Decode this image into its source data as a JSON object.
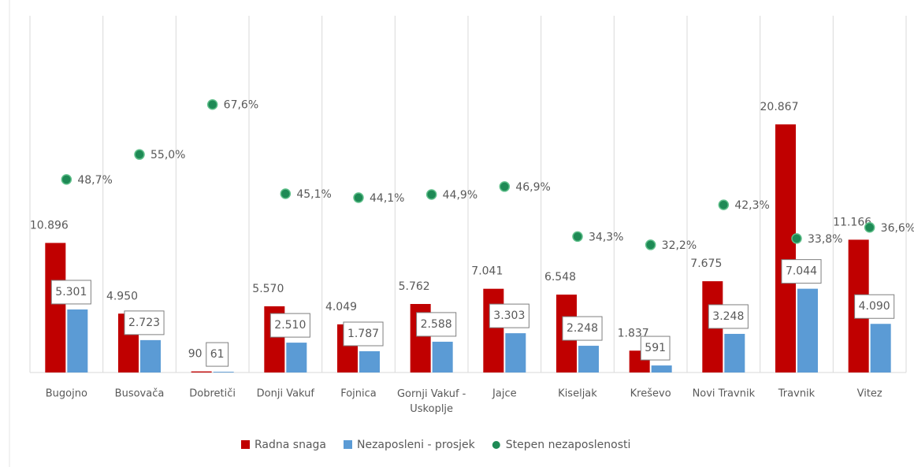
{
  "chart_data": {
    "type": "bar",
    "categories": [
      "Bugojno",
      "Busovača",
      "Dobretiči",
      "Donji Vakuf",
      "Fojnica",
      "Gornji Vakuf - Uskoplje",
      "Jajce",
      "Kiseljak",
      "Kreševo",
      "Novi Travnik",
      "Travnik",
      "Vitez"
    ],
    "series": [
      {
        "name": "Radna snaga",
        "type": "bar",
        "color": "#c00000",
        "values": [
          10896,
          4950,
          90,
          5570,
          4049,
          5762,
          7041,
          6548,
          1837,
          7675,
          20867,
          11166
        ],
        "value_labels": [
          "10.896",
          "4.950",
          "90",
          "5.570",
          "4.049",
          "5.762",
          "7.041",
          "6.548",
          "1.837",
          "7.675",
          "20.867",
          "11.166"
        ]
      },
      {
        "name": "Nezaposleni - prosjek",
        "type": "bar",
        "color": "#5b9bd5",
        "values": [
          5301,
          2723,
          61,
          2510,
          1787,
          2588,
          3303,
          2248,
          591,
          3248,
          7044,
          4090
        ],
        "value_labels": [
          "5.301",
          "2.723",
          "61",
          "2.510",
          "1.787",
          "2.588",
          "3.303",
          "2.248",
          "591",
          "3.248",
          "7.044",
          "4.090"
        ]
      },
      {
        "name": "Stepen nezaposlenosti",
        "type": "scatter",
        "axis": "y2",
        "color": "#1e8a55",
        "values": [
          48.7,
          55.0,
          67.6,
          45.1,
          44.1,
          44.9,
          46.9,
          34.3,
          32.2,
          42.3,
          33.8,
          36.6
        ],
        "value_labels": [
          "48,7%",
          "55,0%",
          "67,6%",
          "45,1%",
          "44,1%",
          "44,9%",
          "46,9%",
          "34,3%",
          "32,2%",
          "42,3%",
          "33,8%",
          "36,6%"
        ]
      }
    ],
    "ylim": [
      0,
      30000
    ],
    "y2lim": [
      0,
      90
    ],
    "legend": "bottom"
  }
}
